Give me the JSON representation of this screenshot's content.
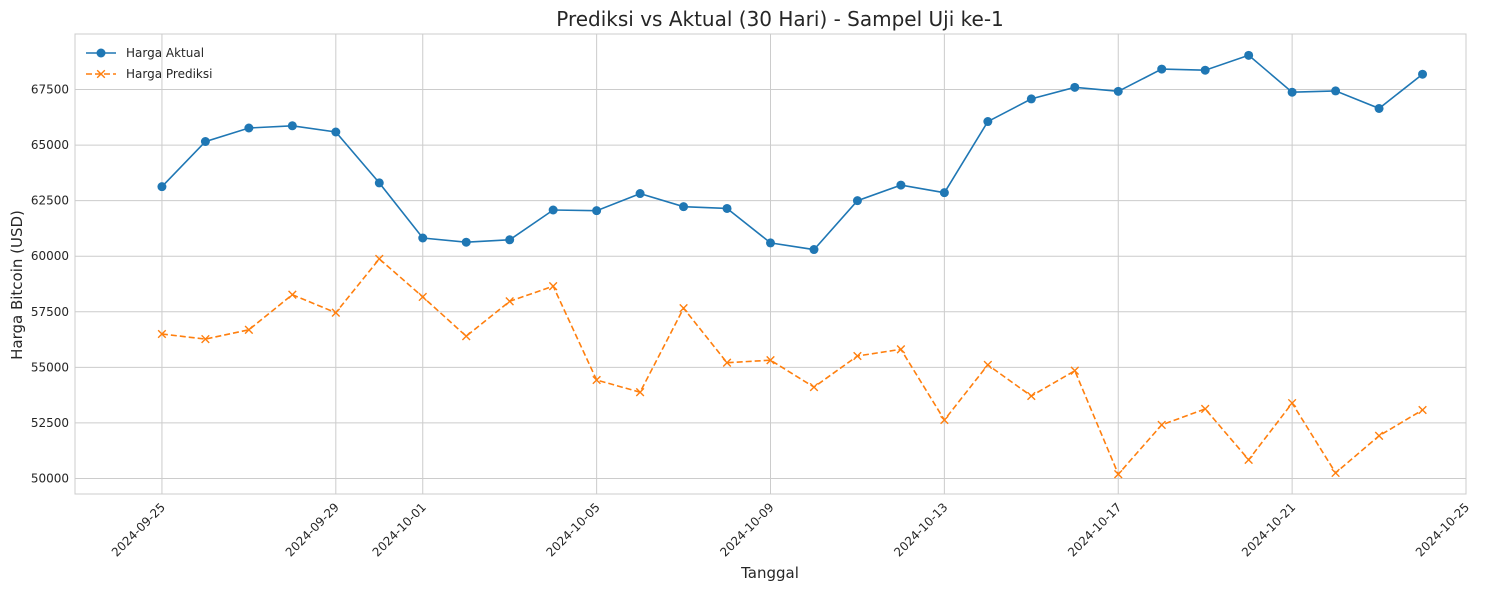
{
  "chart_data": {
    "type": "line",
    "title": "Prediksi vs Aktual (30 Hari) - Sampel Uji ke-1",
    "xlabel": "Tanggal",
    "ylabel": "Harga Bitcoin (USD)",
    "x_dates": [
      "2024-09-25",
      "2024-09-26",
      "2024-09-27",
      "2024-09-28",
      "2024-09-29",
      "2024-09-30",
      "2024-10-01",
      "2024-10-02",
      "2024-10-03",
      "2024-10-04",
      "2024-10-05",
      "2024-10-06",
      "2024-10-07",
      "2024-10-08",
      "2024-10-09",
      "2024-10-10",
      "2024-10-11",
      "2024-10-12",
      "2024-10-13",
      "2024-10-14",
      "2024-10-15",
      "2024-10-16",
      "2024-10-17",
      "2024-10-18",
      "2024-10-19",
      "2024-10-20",
      "2024-10-21",
      "2024-10-22",
      "2024-10-23",
      "2024-10-24"
    ],
    "x_ticks": [
      "2024-09-25",
      "2024-09-29",
      "2024-10-01",
      "2024-10-05",
      "2024-10-09",
      "2024-10-13",
      "2024-10-17",
      "2024-10-21",
      "2024-10-25"
    ],
    "xlim": [
      "2024-09-23",
      "2024-10-25"
    ],
    "y_ticks": [
      50000,
      52500,
      55000,
      57500,
      60000,
      62500,
      65000,
      67500
    ],
    "ylim": [
      49300,
      70000
    ],
    "grid": true,
    "legend_position": "top-left",
    "series": [
      {
        "name": "Harga Aktual",
        "color": "#1f77b4",
        "marker": "circle",
        "line_style": "solid",
        "values": [
          63130,
          65160,
          65770,
          65870,
          65590,
          63300,
          60820,
          60630,
          60740,
          62080,
          62050,
          62820,
          62230,
          62150,
          60600,
          60300,
          62500,
          63200,
          62860,
          66060,
          67080,
          67600,
          67420,
          68420,
          68370,
          69040,
          67380,
          67440,
          66650,
          68190
        ]
      },
      {
        "name": "Harga Prediksi",
        "color": "#ff7f0e",
        "marker": "x",
        "line_style": "dashed",
        "values": [
          56500,
          56270,
          56690,
          58270,
          57460,
          59880,
          58170,
          56400,
          57970,
          58650,
          54430,
          53880,
          57660,
          55210,
          55320,
          54110,
          55510,
          55810,
          52630,
          55110,
          53710,
          54850,
          50190,
          52410,
          53130,
          50840,
          53390,
          50250,
          51920,
          53080
        ]
      }
    ]
  }
}
